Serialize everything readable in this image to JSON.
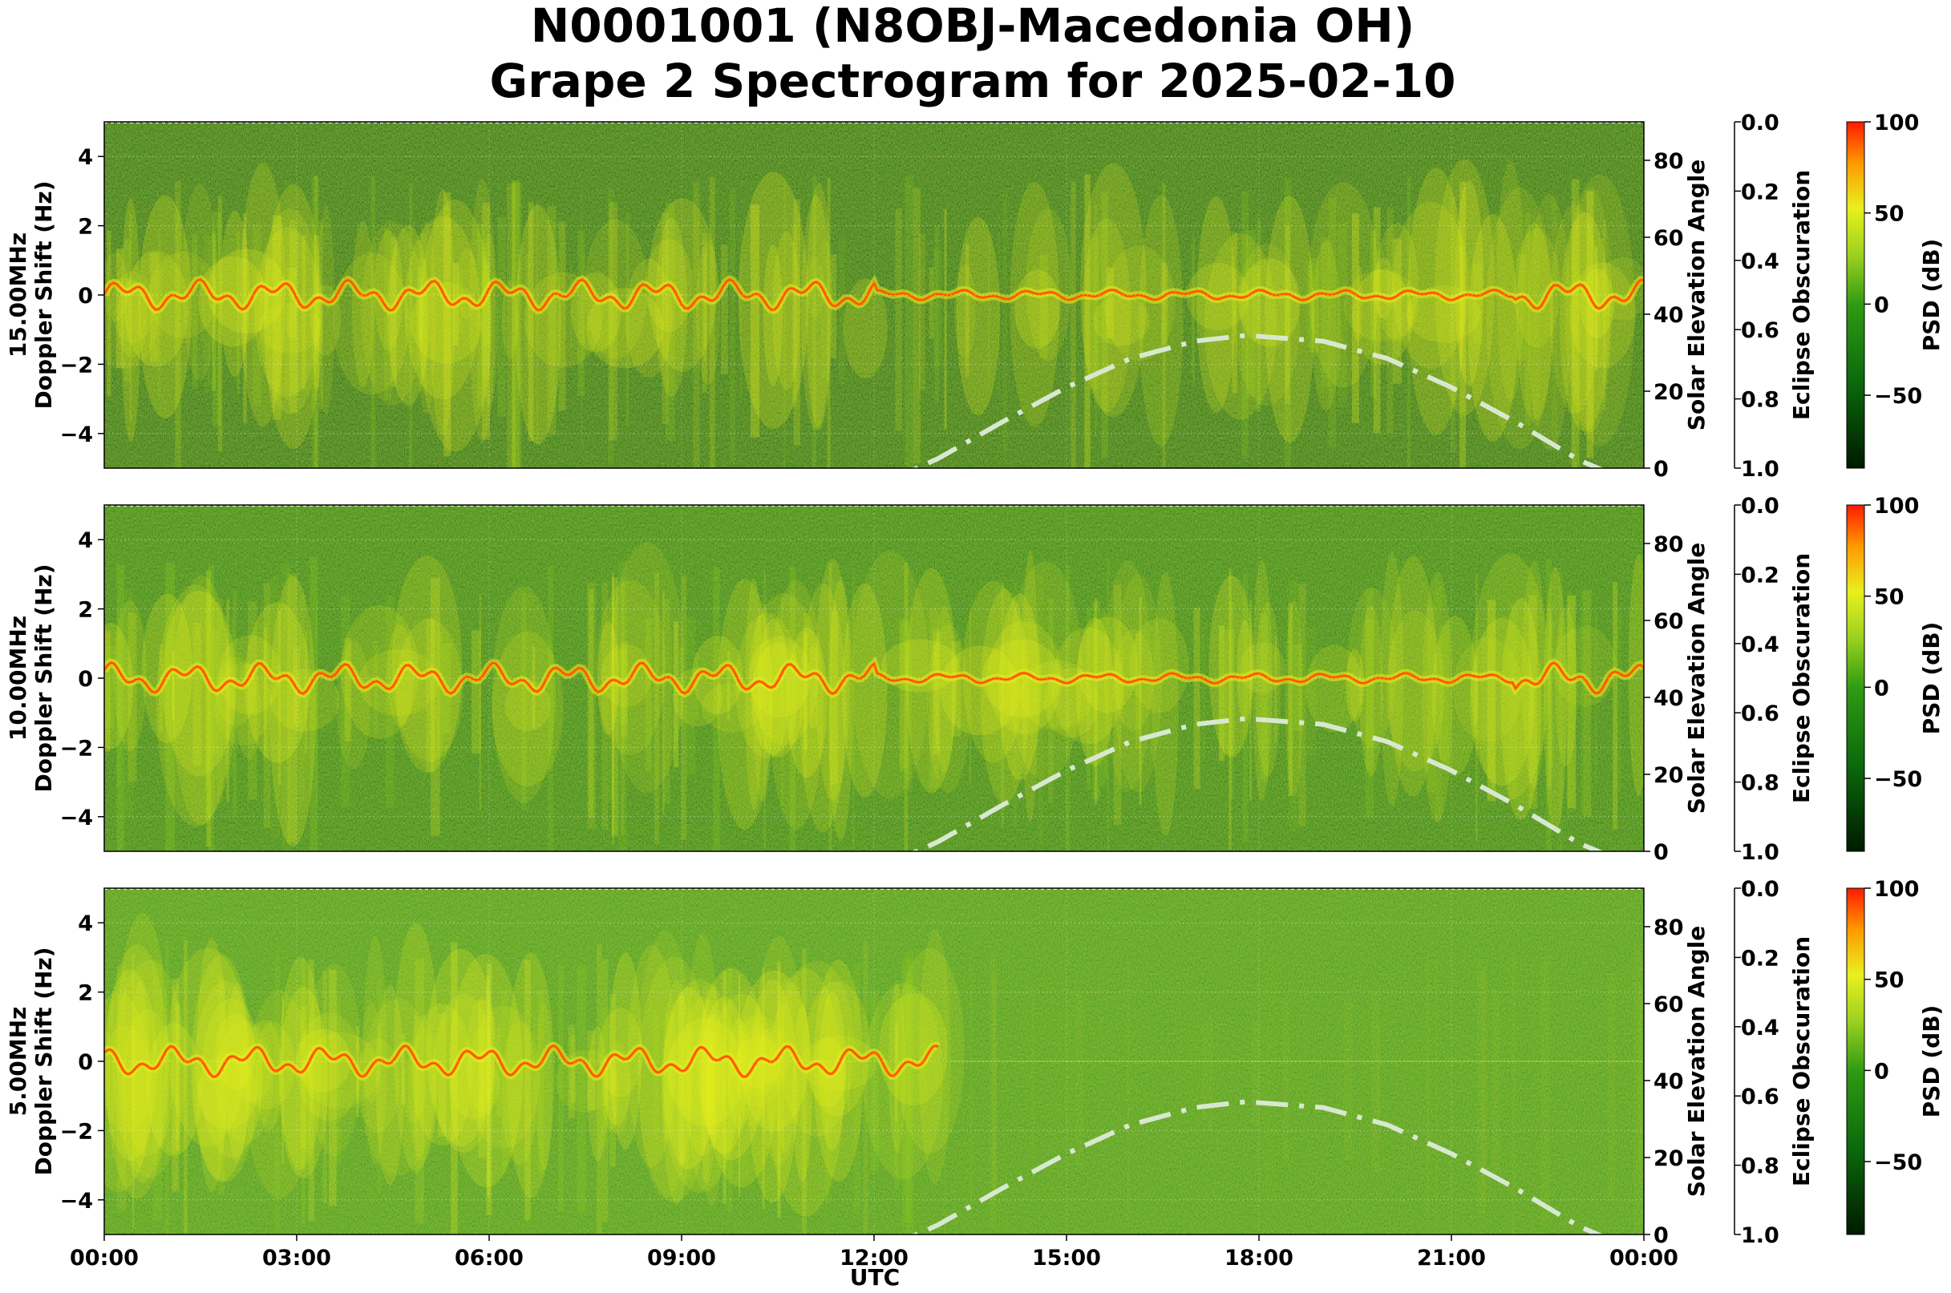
{
  "title_line1": "N0001001 (N8OBJ-Macedonia OH)",
  "title_line2": "Grape 2 Spectrogram for 2025-02-10",
  "x_axis_label": "UTC",
  "x_tick_labels": [
    "00:00",
    "03:00",
    "06:00",
    "09:00",
    "12:00",
    "15:00",
    "18:00",
    "21:00",
    "00:00"
  ],
  "right_axis_label": "Solar Elevation Angle",
  "eclipse_axis_label": "Eclipse Obscuration",
  "colorbar_label": "PSD (dB)",
  "colors": {
    "background_green": "#0b7a0b",
    "mid_green": "#3f9f16",
    "light_green": "#8ecb1f",
    "yellow": "#e8f01e",
    "orange": "#ff8a00",
    "red": "#ff2a00",
    "solar_curve": "#d8e8d0"
  },
  "chart_data": [
    {
      "type": "heatmap",
      "frequency_label": "15.00MHz",
      "ylabel": "15.00MHz\nDoppler Shift (Hz)",
      "x": "UTC 00:00 to 24:00",
      "ylim": [
        -5,
        5
      ],
      "y_ticks": [
        4,
        2,
        0,
        -2,
        -4
      ],
      "right_ylim": [
        0,
        90
      ],
      "right_y_ticks": [
        80,
        60,
        40,
        20,
        0
      ],
      "eclipse_ticks": [
        "0.0",
        "0.2",
        "0.4",
        "0.6",
        "0.8",
        "1.0"
      ],
      "colorbar_ticks": [
        100,
        50,
        0,
        -50
      ],
      "colorbar_range": [
        -90,
        100
      ],
      "solar_elevation": {
        "hours": [
          12,
          13,
          14,
          15,
          16,
          17,
          17.8,
          19,
          20,
          21,
          22,
          23,
          24
        ],
        "values": [
          -5,
          2.5,
          12,
          21,
          28.5,
          33,
          34.5,
          33,
          28.5,
          21,
          12,
          2,
          -5
        ]
      }
    },
    {
      "type": "heatmap",
      "frequency_label": "10.00MHz",
      "ylabel": "10.00MHz\nDoppler Shift (Hz)",
      "x": "UTC 00:00 to 24:00",
      "ylim": [
        -5,
        5
      ],
      "y_ticks": [
        4,
        2,
        0,
        -2,
        -4
      ],
      "right_ylim": [
        0,
        90
      ],
      "right_y_ticks": [
        80,
        60,
        40,
        20,
        0
      ],
      "eclipse_ticks": [
        "0.0",
        "0.2",
        "0.4",
        "0.6",
        "0.8",
        "1.0"
      ],
      "colorbar_ticks": [
        100,
        50,
        0,
        -50
      ],
      "colorbar_range": [
        -90,
        100
      ],
      "solar_elevation": {
        "hours": [
          12,
          13,
          14,
          15,
          16,
          17,
          17.8,
          19,
          20,
          21,
          22,
          23,
          24
        ],
        "values": [
          -5,
          2.5,
          12,
          21,
          28.5,
          33,
          34.5,
          33,
          28.5,
          21,
          12,
          2,
          -5
        ]
      }
    },
    {
      "type": "heatmap",
      "frequency_label": "5.00MHz",
      "ylabel": "5.00MHz\nDoppler Shift (Hz)",
      "x": "UTC 00:00 to 24:00",
      "ylim": [
        -5,
        5
      ],
      "y_ticks": [
        4,
        2,
        0,
        -2,
        -4
      ],
      "right_ylim": [
        0,
        90
      ],
      "right_y_ticks": [
        80,
        60,
        40,
        20,
        0
      ],
      "eclipse_ticks": [
        "0.0",
        "0.2",
        "0.4",
        "0.6",
        "0.8",
        "1.0"
      ],
      "colorbar_ticks": [
        100,
        50,
        0,
        -50
      ],
      "colorbar_range": [
        -90,
        100
      ],
      "solar_elevation": {
        "hours": [
          12,
          13,
          14,
          15,
          16,
          17,
          17.8,
          19,
          20,
          21,
          22,
          23,
          24
        ],
        "values": [
          -5,
          2.5,
          12,
          21,
          28.5,
          33,
          34.5,
          33,
          28.5,
          21,
          12,
          2,
          -5
        ]
      }
    }
  ]
}
